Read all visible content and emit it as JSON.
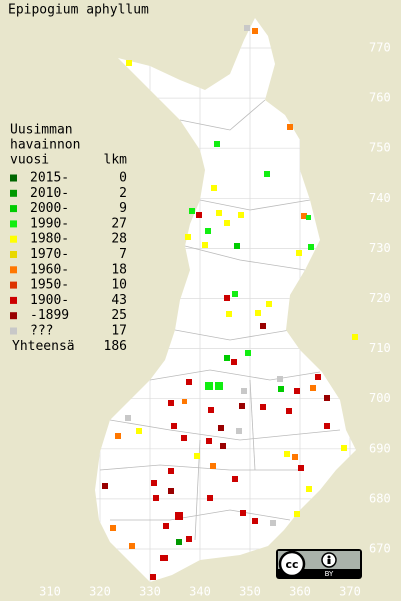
{
  "title": "Epipogium aphyllum",
  "legend": {
    "heading": [
      "Uusimman",
      "havainnon",
      "vuosi"
    ],
    "count_heading": "lkm",
    "rows": [
      {
        "label": "2015-",
        "count": 0,
        "color": "#006600"
      },
      {
        "label": "2010-",
        "count": 2,
        "color": "#009900"
      },
      {
        "label": "2000-",
        "count": 9,
        "color": "#00cc00"
      },
      {
        "label": "1990-",
        "count": 27,
        "color": "#11ee11"
      },
      {
        "label": "1980-",
        "count": 28,
        "color": "#ffff00"
      },
      {
        "label": "1970-",
        "count": 7,
        "color": "#e8d800"
      },
      {
        "label": "1960-",
        "count": 18,
        "color": "#ff7700"
      },
      {
        "label": "1950-",
        "count": 10,
        "color": "#dd3300"
      },
      {
        "label": "1900-",
        "count": 43,
        "color": "#cc0000"
      },
      {
        "label": "-1899",
        "count": 25,
        "color": "#990000"
      },
      {
        "label": "???",
        "count": 17,
        "color": "#c8c8c8"
      }
    ],
    "total_label": "Yhteensä",
    "total": 186
  },
  "x_labels": [
    310,
    320,
    330,
    340,
    350,
    360,
    370
  ],
  "y_labels": [
    770,
    760,
    750,
    740,
    730,
    720,
    710,
    700,
    690,
    680,
    670
  ],
  "license_badge": {
    "logo": "cc",
    "terms": "BY"
  }
}
